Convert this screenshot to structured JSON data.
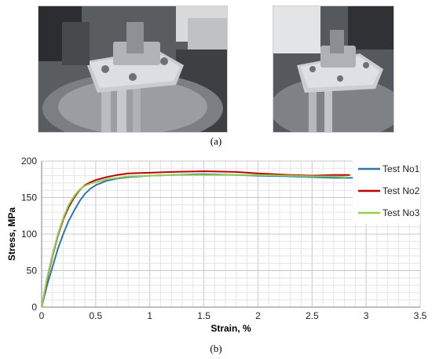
{
  "figure": {
    "caption_a": "(a)",
    "caption_b": "(b)"
  },
  "photos": [
    {
      "name": "photo-tensile-grips-wide",
      "content": "tensile test fixture with grips on machine"
    },
    {
      "name": "photo-tensile-grips-close",
      "content": "close-up of tensile test grips"
    }
  ],
  "chart_data": {
    "type": "line",
    "title": "",
    "xlabel": "Strain, %",
    "ylabel": "Stress, MPa",
    "xlim": [
      0,
      3.5
    ],
    "ylim": [
      0,
      200
    ],
    "xticks": [
      "0",
      "0.5",
      "1",
      "1.5",
      "2",
      "2.5",
      "3",
      "3.5"
    ],
    "yticks": [
      "0",
      "50",
      "100",
      "150",
      "200"
    ],
    "grid": true,
    "legend_position": "right",
    "series": [
      {
        "name": "Test No1",
        "color": "#2e75b6",
        "x": [
          0,
          0.05,
          0.1,
          0.15,
          0.2,
          0.25,
          0.3,
          0.35,
          0.4,
          0.45,
          0.5,
          0.6,
          0.7,
          0.8,
          1.0,
          1.2,
          1.5,
          1.8,
          2.0,
          2.3,
          2.5,
          2.7,
          2.9
        ],
        "y": [
          0,
          30,
          55,
          80,
          100,
          118,
          132,
          145,
          155,
          162,
          167,
          173,
          176,
          178,
          180,
          181,
          182,
          181,
          180,
          179,
          178,
          177,
          177
        ]
      },
      {
        "name": "Test No2",
        "color": "#c00000",
        "x": [
          0,
          0.05,
          0.1,
          0.15,
          0.2,
          0.25,
          0.3,
          0.35,
          0.4,
          0.45,
          0.5,
          0.6,
          0.7,
          0.8,
          1.0,
          1.2,
          1.5,
          1.8,
          2.0,
          2.3,
          2.5,
          2.7,
          2.85
        ],
        "y": [
          0,
          38,
          70,
          98,
          120,
          137,
          150,
          160,
          167,
          171,
          174,
          178,
          181,
          183,
          184,
          185,
          186,
          185,
          183,
          181,
          180,
          181,
          181
        ]
      },
      {
        "name": "Test No3",
        "color": "#92d050",
        "x": [
          0,
          0.05,
          0.1,
          0.15,
          0.2,
          0.25,
          0.3,
          0.35,
          0.4,
          0.45,
          0.5,
          0.6,
          0.7,
          0.8,
          1.0,
          1.2,
          1.5,
          1.8,
          2.0,
          2.3,
          2.5,
          2.7,
          2.82
        ],
        "y": [
          0,
          40,
          72,
          100,
          122,
          140,
          152,
          161,
          166,
          169,
          171,
          175,
          177,
          179,
          180,
          181,
          181,
          181,
          181,
          180,
          179,
          179,
          178
        ]
      }
    ]
  }
}
